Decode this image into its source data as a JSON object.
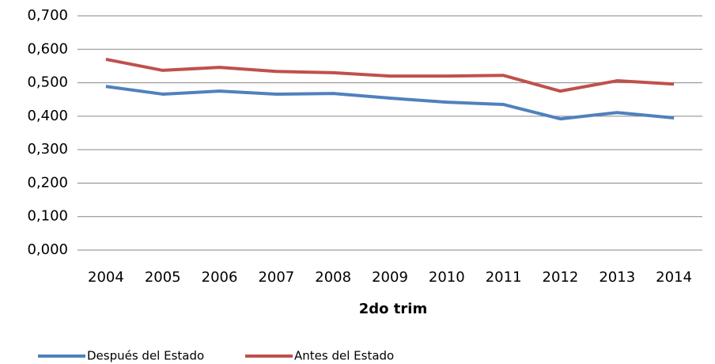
{
  "chart_data": {
    "type": "line",
    "x_label": "2do trim",
    "categories": [
      "2004",
      "2005",
      "2006",
      "2007",
      "2008",
      "2009",
      "2010",
      "2011",
      "2012",
      "2013",
      "2014"
    ],
    "series": [
      {
        "name": "Después del Estado",
        "color": "#4f81bd",
        "values": [
          0.489,
          0.466,
          0.475,
          0.466,
          0.468,
          0.454,
          0.442,
          0.435,
          0.392,
          0.411,
          0.395
        ]
      },
      {
        "name": "Antes del Estado",
        "color": "#c0504d",
        "values": [
          0.57,
          0.537,
          0.546,
          0.534,
          0.53,
          0.52,
          0.52,
          0.522,
          0.475,
          0.506,
          0.496
        ]
      }
    ],
    "ylim": [
      0,
      0.7
    ],
    "yticks": [
      {
        "value": 0,
        "label": "0,000"
      },
      {
        "value": 0.1,
        "label": "0,100"
      },
      {
        "value": 0.2,
        "label": "0,200"
      },
      {
        "value": 0.3,
        "label": "0,300"
      },
      {
        "value": 0.4,
        "label": "0,400"
      },
      {
        "value": 0.5,
        "label": "0,500"
      },
      {
        "value": 0.6,
        "label": "0,600"
      },
      {
        "value": 0.7,
        "label": "0,700"
      }
    ],
    "grid": true,
    "legend": "bottom"
  }
}
